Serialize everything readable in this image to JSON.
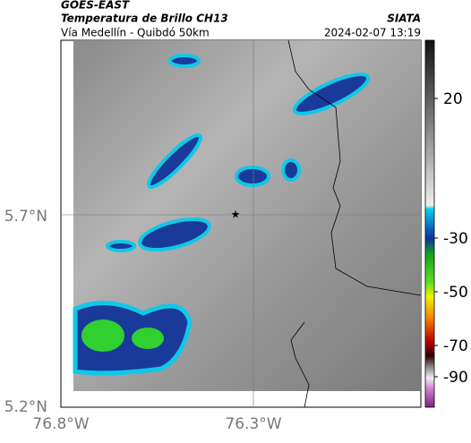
{
  "header": {
    "title": "GOES-EAST",
    "subtitle": "Temperatura de Brillo CH13",
    "route": "Vía Medellín - Quibdó 50km",
    "source": "SIATA",
    "datetime": "2024-02-07 13:19"
  },
  "map": {
    "x_labels": [
      "76.8°W",
      "76.3°W"
    ],
    "y_labels": [
      "5.7°N",
      "5.2°N"
    ]
  },
  "colorbar": {
    "labels": [
      "20",
      "-30",
      "-50",
      "-70",
      "-90"
    ]
  }
}
